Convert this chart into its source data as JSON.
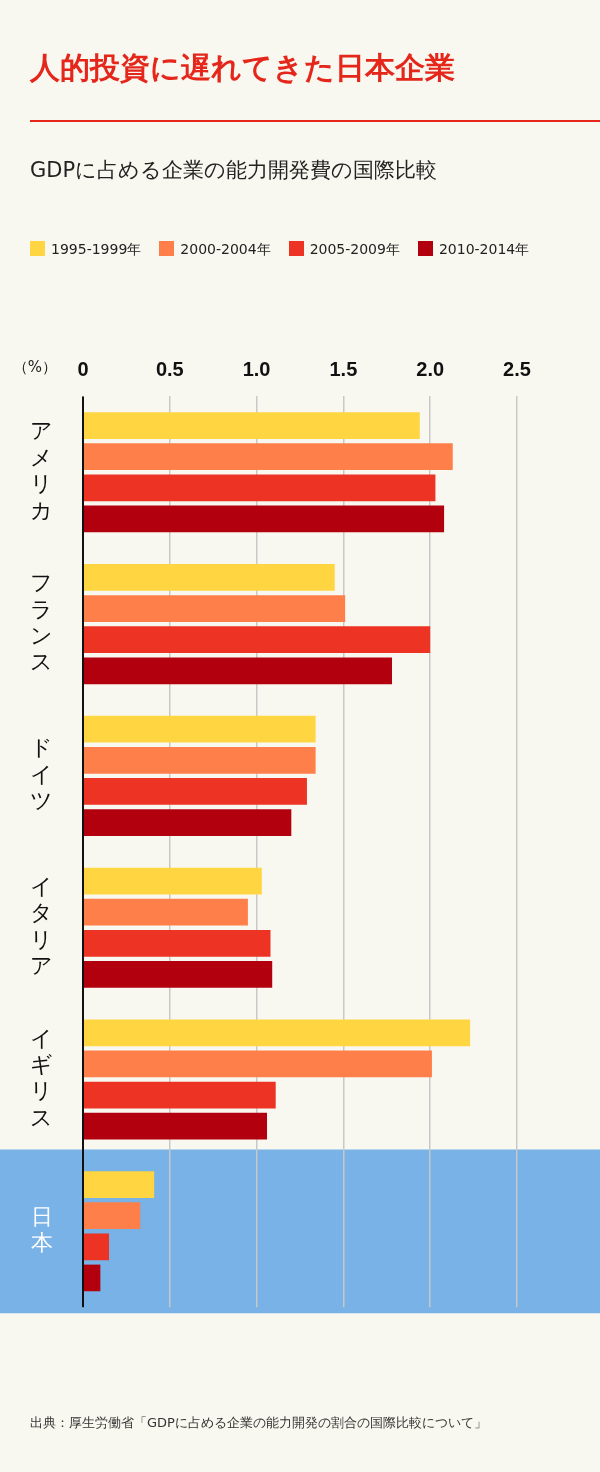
{
  "chart_data": {
    "type": "bar",
    "orientation": "horizontal",
    "title": "人的投資に遅れてきた日本企業",
    "subtitle": "GDPに占める企業の能力開発費の国際比較",
    "xlabel": "（%）",
    "categories": [
      "アメリカ",
      "フランス",
      "ドイツ",
      "イタリア",
      "イギリス",
      "日本"
    ],
    "series": [
      {
        "name": "1995-1999年",
        "color": "#ffd541",
        "values": [
          1.94,
          1.45,
          1.34,
          1.03,
          2.23,
          0.41
        ]
      },
      {
        "name": "2000-2004年",
        "color": "#ff7f4b",
        "values": [
          2.13,
          1.51,
          1.34,
          0.95,
          2.01,
          0.33
        ]
      },
      {
        "name": "2005-2009年",
        "color": "#ec3324",
        "values": [
          2.03,
          2.0,
          1.29,
          1.08,
          1.11,
          0.15
        ]
      },
      {
        "name": "2010-2014年",
        "color": "#b3000f",
        "values": [
          2.08,
          1.78,
          1.2,
          1.09,
          1.06,
          0.1
        ]
      }
    ],
    "xlim": [
      0,
      2.5
    ],
    "xticks": [
      0,
      0.5,
      {
        "value": 1,
        "label": "1.0"
      },
      1.5,
      {
        "value": 2,
        "label": "2.0"
      },
      2.5
    ],
    "grid": "x",
    "legend": "top",
    "bands": [
      {
        "axis": "y",
        "from": "日本",
        "to": "日本",
        "color": "#78b2e6"
      }
    ],
    "annotations": [
      "出典：厚生労働省「GDPに占める企業の能力開発の割合の国際比較について」"
    ]
  }
}
